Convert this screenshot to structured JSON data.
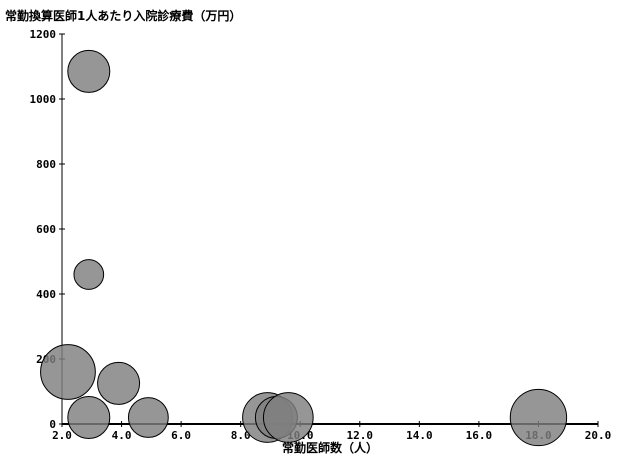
{
  "chart_data": {
    "type": "scatter",
    "title": "",
    "ylabel": "常勤換算医師1人あたり入院診療費（万円）",
    "xlabel": "常勤医師数（人）",
    "xlim": [
      2.0,
      20.0
    ],
    "ylim": [
      0,
      1200
    ],
    "xticks": [
      "2.0",
      "4.0",
      "6.0",
      "8.0",
      "10.0",
      "12.0",
      "14.0",
      "16.0",
      "18.0",
      "20.0"
    ],
    "yticks": [
      "0",
      "200",
      "400",
      "600",
      "800",
      "1000",
      "1200"
    ],
    "grid": false,
    "bubble_color": "#7f7f7f",
    "points": [
      {
        "x": 2.9,
        "y": 1085,
        "size": 1.0
      },
      {
        "x": 2.9,
        "y": 460,
        "size": 0.5
      },
      {
        "x": 2.2,
        "y": 160,
        "size": 1.7
      },
      {
        "x": 3.9,
        "y": 125,
        "size": 1.0
      },
      {
        "x": 2.9,
        "y": 20,
        "size": 1.0
      },
      {
        "x": 4.9,
        "y": 20,
        "size": 0.9
      },
      {
        "x": 8.9,
        "y": 20,
        "size": 1.4
      },
      {
        "x": 9.2,
        "y": 20,
        "size": 1.0
      },
      {
        "x": 9.6,
        "y": 20,
        "size": 1.4
      },
      {
        "x": 18.0,
        "y": 20,
        "size": 1.8
      }
    ]
  }
}
